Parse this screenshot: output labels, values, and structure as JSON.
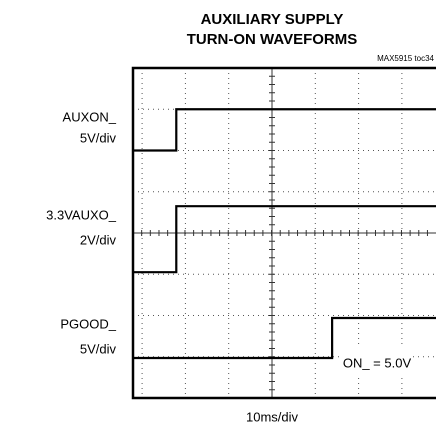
{
  "chart_data": {
    "type": "line",
    "title": [
      "AUXILIARY SUPPLY",
      "TURN-ON WAVEFORMS"
    ],
    "note": "MAX5915 toc34",
    "annotation": "ON_ = 5.0V",
    "xlabel": "10ms/div",
    "xlim": [
      0,
      70
    ],
    "ylim": [
      0,
      8
    ],
    "series": [
      {
        "name": "AUXON_",
        "scale": "5V/div",
        "color": "#000000",
        "x": [
          0,
          10,
          10,
          70
        ],
        "values": [
          6,
          6,
          7,
          7
        ]
      },
      {
        "name": "3.3VAUXO_",
        "scale": "2V/div",
        "color": "#000000",
        "x": [
          0,
          10,
          10,
          70
        ],
        "values": [
          3.05,
          3.05,
          4.65,
          4.65
        ]
      },
      {
        "name": "PGOOD_",
        "scale": "5V/div",
        "color": "#000000",
        "x": [
          0,
          46,
          46,
          70
        ],
        "values": [
          0.97,
          0.97,
          1.94,
          1.94
        ]
      }
    ]
  }
}
